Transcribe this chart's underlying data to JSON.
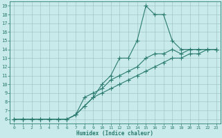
{
  "title": "",
  "xlabel": "Humidex (Indice chaleur)",
  "bg_color": "#c8eaea",
  "grid_color": "#9bbfbf",
  "line_color": "#2a7a70",
  "xlim": [
    -0.5,
    23.5
  ],
  "ylim": [
    5.5,
    19.5
  ],
  "xticks": [
    0,
    1,
    2,
    3,
    4,
    5,
    6,
    7,
    8,
    9,
    10,
    11,
    12,
    13,
    14,
    15,
    16,
    17,
    18,
    19,
    20,
    21,
    22,
    23
  ],
  "yticks": [
    6,
    7,
    8,
    9,
    10,
    11,
    12,
    13,
    14,
    15,
    16,
    17,
    18,
    19
  ],
  "line1_x": [
    0,
    1,
    2,
    3,
    4,
    5,
    6,
    7,
    8,
    9,
    10,
    11,
    12,
    13,
    14,
    15,
    16,
    17,
    18,
    19,
    20,
    21,
    22,
    23
  ],
  "line1_y": [
    6,
    6,
    6,
    6,
    6,
    6,
    6,
    6.5,
    7.5,
    8.5,
    10,
    11,
    13,
    13,
    15,
    19,
    18,
    18,
    15,
    14,
    14,
    14,
    14,
    14
  ],
  "line2_x": [
    0,
    1,
    2,
    3,
    4,
    5,
    6,
    7,
    8,
    9,
    10,
    11,
    12,
    13,
    14,
    15,
    16,
    17,
    18,
    19,
    20,
    21,
    22,
    23
  ],
  "line2_y": [
    6,
    6,
    6,
    6,
    6,
    6,
    6,
    6.5,
    8.5,
    9,
    9.5,
    10.5,
    11,
    11.5,
    12,
    13,
    13.5,
    13.5,
    14,
    13.5,
    14,
    14,
    14,
    14
  ],
  "line3_x": [
    0,
    1,
    2,
    3,
    4,
    5,
    6,
    7,
    8,
    9,
    10,
    11,
    12,
    13,
    14,
    15,
    16,
    17,
    18,
    19,
    20,
    21,
    22,
    23
  ],
  "line3_y": [
    6,
    6,
    6,
    6,
    6,
    6,
    6,
    6.5,
    7.5,
    8.5,
    9,
    9.5,
    10,
    10.5,
    11,
    11.5,
    12,
    12.5,
    13,
    13,
    13.5,
    13.5,
    14,
    14
  ]
}
